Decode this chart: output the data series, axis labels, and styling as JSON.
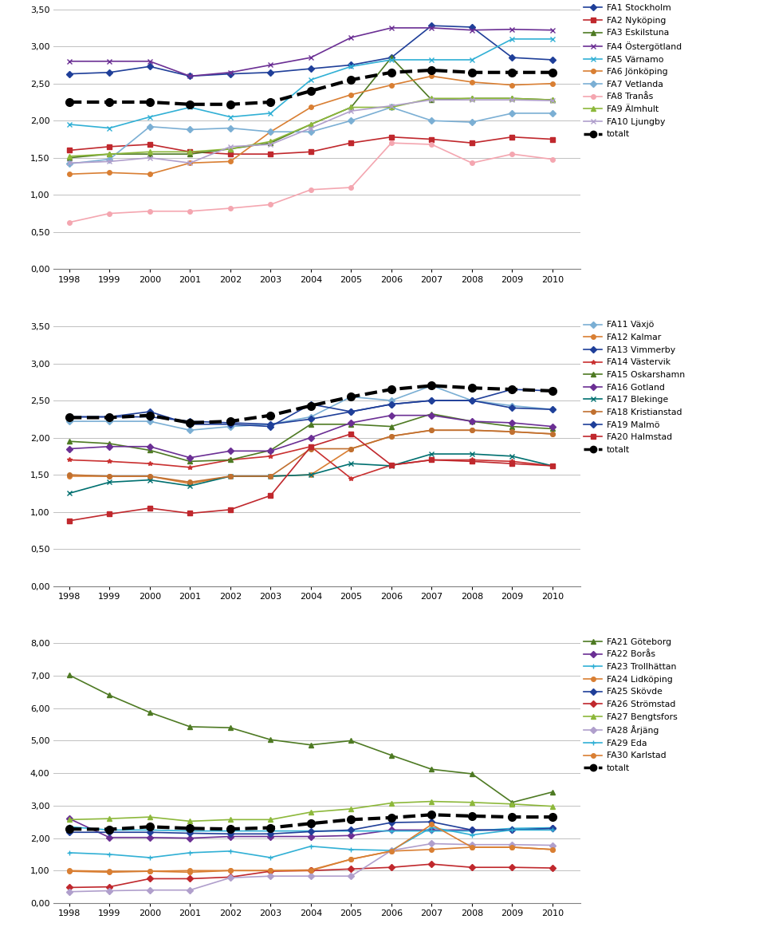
{
  "years": [
    1998,
    1999,
    2000,
    2001,
    2002,
    2003,
    2004,
    2005,
    2006,
    2007,
    2008,
    2009,
    2010
  ],
  "chart1": {
    "ylim": [
      0.0,
      3.5
    ],
    "yticks": [
      0.0,
      0.5,
      1.0,
      1.5,
      2.0,
      2.5,
      3.0,
      3.5
    ],
    "series_order": [
      "FA1 Stockholm",
      "FA2 Nyköping",
      "FA3 Eskilstuna",
      "FA4 Östergötland",
      "FA5 Värnamo",
      "FA6 Jönköping",
      "FA7 Vetlanda",
      "FA8 Tranås",
      "FA9 Älmhult",
      "FA10 Ljungby",
      "totalt"
    ],
    "series": {
      "FA1 Stockholm": [
        2.63,
        2.65,
        2.73,
        2.6,
        2.63,
        2.65,
        2.7,
        2.75,
        2.85,
        3.28,
        3.26,
        2.85,
        2.82
      ],
      "FA2 Nyköping": [
        1.6,
        1.65,
        1.68,
        1.58,
        1.55,
        1.55,
        1.58,
        1.7,
        1.78,
        1.75,
        1.7,
        1.78,
        1.75
      ],
      "FA3 Eskilstuna": [
        1.5,
        1.55,
        1.55,
        1.55,
        1.62,
        1.7,
        1.95,
        2.18,
        2.85,
        2.28,
        2.3,
        2.3,
        2.28
      ],
      "FA4 Östergötland": [
        2.8,
        2.8,
        2.8,
        2.6,
        2.65,
        2.75,
        2.85,
        3.12,
        3.25,
        3.25,
        3.22,
        3.23,
        3.22
      ],
      "FA5 Värnamo": [
        1.95,
        1.9,
        2.05,
        2.18,
        2.05,
        2.1,
        2.55,
        2.73,
        2.82,
        2.82,
        2.82,
        3.1,
        3.1
      ],
      "FA6 Jönköping": [
        1.28,
        1.3,
        1.28,
        1.43,
        1.45,
        1.85,
        2.18,
        2.35,
        2.48,
        2.6,
        2.52,
        2.48,
        2.5
      ],
      "FA7 Vetlanda": [
        1.42,
        1.48,
        1.92,
        1.88,
        1.9,
        1.85,
        1.85,
        2.0,
        2.18,
        2.0,
        1.98,
        2.1,
        2.1
      ],
      "FA8 Tranås": [
        0.63,
        0.75,
        0.78,
        0.78,
        0.82,
        0.87,
        1.07,
        1.1,
        1.7,
        1.68,
        1.43,
        1.55,
        1.48
      ],
      "FA9 Älmhult": [
        1.52,
        1.55,
        1.58,
        1.58,
        1.62,
        1.72,
        1.95,
        2.18,
        2.18,
        2.3,
        2.3,
        2.3,
        2.28
      ],
      "FA10 Ljungby": [
        1.43,
        1.45,
        1.5,
        1.43,
        1.65,
        1.68,
        1.9,
        2.13,
        2.2,
        2.28,
        2.28,
        2.28,
        2.27
      ],
      "totalt": [
        2.25,
        2.25,
        2.25,
        2.22,
        2.22,
        2.25,
        2.4,
        2.55,
        2.65,
        2.68,
        2.65,
        2.65,
        2.65
      ]
    },
    "colors": {
      "FA1 Stockholm": "#1f3f99",
      "FA2 Nyköping": "#c0282d",
      "FA3 Eskilstuna": "#4e7a23",
      "FA4 Östergötland": "#6b2f94",
      "FA5 Värnamo": "#31b0d5",
      "FA6 Jönköping": "#d97f33",
      "FA7 Vetlanda": "#7bafd4",
      "FA8 Tranås": "#f4a6b0",
      "FA9 Älmhult": "#8db83b",
      "FA10 Ljungby": "#b09fcc",
      "totalt": "#000000"
    },
    "markers": {
      "FA1 Stockholm": "D",
      "FA2 Nyköping": "s",
      "FA3 Eskilstuna": "^",
      "FA4 Östergötland": "x",
      "FA5 Värnamo": "x",
      "FA6 Jönköping": "o",
      "FA7 Vetlanda": "D",
      "FA8 Tranås": "o",
      "FA9 Älmhult": "^",
      "FA10 Ljungby": "x",
      "totalt": "o"
    }
  },
  "chart2": {
    "ylim": [
      0.0,
      3.5
    ],
    "yticks": [
      0.0,
      0.5,
      1.0,
      1.5,
      2.0,
      2.5,
      3.0,
      3.5
    ],
    "series_order": [
      "FA11 Växjö",
      "FA12 Kalmar",
      "FA13 Vimmerby",
      "FA14 Västervik",
      "FA15 Oskarshamn",
      "FA16 Gotland",
      "FA17 Blekinge",
      "FA18 Kristianstad",
      "FA19 Malmö",
      "FA20 Halmstad",
      "totalt"
    ],
    "series": {
      "FA11 Växjö": [
        2.22,
        2.22,
        2.22,
        2.1,
        2.15,
        2.18,
        2.28,
        2.55,
        2.5,
        2.7,
        2.5,
        2.43,
        2.38
      ],
      "FA12 Kalmar": [
        1.48,
        1.48,
        1.48,
        1.38,
        1.48,
        1.48,
        1.5,
        1.85,
        2.02,
        2.1,
        2.1,
        2.08,
        2.05
      ],
      "FA13 Vimmerby": [
        2.28,
        2.28,
        2.28,
        2.22,
        2.2,
        2.18,
        2.25,
        2.35,
        2.45,
        2.5,
        2.5,
        2.65,
        2.63
      ],
      "FA14 Västervik": [
        1.7,
        1.68,
        1.65,
        1.6,
        1.7,
        1.75,
        1.88,
        1.45,
        1.63,
        1.7,
        1.7,
        1.68,
        1.62
      ],
      "FA15 Oskarshamn": [
        1.95,
        1.92,
        1.83,
        1.68,
        1.7,
        1.83,
        2.18,
        2.18,
        2.15,
        2.32,
        2.22,
        2.15,
        2.12
      ],
      "FA16 Gotland": [
        1.85,
        1.88,
        1.88,
        1.73,
        1.82,
        1.82,
        2.0,
        2.2,
        2.3,
        2.3,
        2.22,
        2.2,
        2.15
      ],
      "FA17 Blekinge": [
        1.25,
        1.4,
        1.43,
        1.35,
        1.48,
        1.48,
        1.5,
        1.65,
        1.62,
        1.78,
        1.78,
        1.75,
        1.62
      ],
      "FA18 Kristianstad": [
        1.5,
        1.48,
        1.48,
        1.4,
        1.48,
        1.48,
        1.85,
        1.85,
        2.02,
        2.1,
        2.1,
        2.08,
        2.05
      ],
      "FA19 Malmö": [
        2.28,
        2.28,
        2.35,
        2.18,
        2.18,
        2.15,
        2.45,
        2.35,
        2.45,
        2.5,
        2.5,
        2.4,
        2.38
      ],
      "FA20 Halmstad": [
        0.88,
        0.97,
        1.05,
        0.98,
        1.03,
        1.22,
        1.88,
        2.05,
        1.63,
        1.7,
        1.68,
        1.65,
        1.62
      ],
      "totalt": [
        2.27,
        2.27,
        2.3,
        2.2,
        2.22,
        2.3,
        2.43,
        2.55,
        2.65,
        2.7,
        2.67,
        2.65,
        2.63
      ]
    },
    "colors": {
      "FA11 Växjö": "#7bafd4",
      "FA12 Kalmar": "#d97f33",
      "FA13 Vimmerby": "#1f3f99",
      "FA14 Västervik": "#c93030",
      "FA15 Oskarshamn": "#4e7a23",
      "FA16 Gotland": "#6b2f94",
      "FA17 Blekinge": "#007070",
      "FA18 Kristianstad": "#c07030",
      "FA19 Malmö": "#1f3f99",
      "FA20 Halmstad": "#c0282d",
      "totalt": "#000000"
    },
    "markers": {
      "FA11 Växjö": "D",
      "FA12 Kalmar": "o",
      "FA13 Vimmerby": "D",
      "FA14 Västervik": "*",
      "FA15 Oskarshamn": "^",
      "FA16 Gotland": "D",
      "FA17 Blekinge": "x",
      "FA18 Kristianstad": "o",
      "FA19 Malmö": "D",
      "FA20 Halmstad": "s",
      "totalt": "o"
    }
  },
  "chart3": {
    "ylim": [
      0.0,
      8.0
    ],
    "yticks": [
      0.0,
      1.0,
      2.0,
      3.0,
      4.0,
      5.0,
      6.0,
      7.0,
      8.0
    ],
    "series_order": [
      "FA21 Göteborg",
      "FA22 Borås",
      "FA23 Trollhättan",
      "FA24 Lidköping",
      "FA25 Skövde",
      "FA26 Strömstad",
      "FA27 Bengtsfors",
      "FA28 Årjäng",
      "FA29 Eda",
      "FA30 Karlstad",
      "totalt"
    ],
    "series": {
      "FA21 Göteborg": [
        7.02,
        6.4,
        5.87,
        5.43,
        5.4,
        5.03,
        4.87,
        5.0,
        4.55,
        4.12,
        3.98,
        3.1,
        3.42
      ],
      "FA22 Borås": [
        2.6,
        2.02,
        2.02,
        2.0,
        2.05,
        2.05,
        2.05,
        2.08,
        2.25,
        2.25,
        2.25,
        2.25,
        2.3
      ],
      "FA23 Trollhättan": [
        2.35,
        2.25,
        2.25,
        2.22,
        2.22,
        2.22,
        2.22,
        2.22,
        2.22,
        2.22,
        2.22,
        2.3,
        2.32
      ],
      "FA24 Lidköping": [
        1.0,
        0.98,
        0.98,
        1.0,
        1.0,
        1.0,
        1.02,
        1.35,
        1.6,
        1.65,
        1.72,
        1.72,
        1.65
      ],
      "FA25 Skövde": [
        2.18,
        2.18,
        2.18,
        2.15,
        2.13,
        2.13,
        2.2,
        2.25,
        2.48,
        2.5,
        2.25,
        2.25,
        2.3
      ],
      "FA26 Strömstad": [
        0.48,
        0.5,
        0.75,
        0.75,
        0.8,
        0.98,
        1.0,
        1.05,
        1.1,
        1.2,
        1.1,
        1.1,
        1.08
      ],
      "FA27 Bengtsfors": [
        2.57,
        2.6,
        2.65,
        2.52,
        2.57,
        2.57,
        2.8,
        2.9,
        3.08,
        3.13,
        3.1,
        3.05,
        2.98
      ],
      "FA28 Årjäng": [
        0.35,
        0.38,
        0.4,
        0.4,
        0.78,
        0.83,
        0.83,
        0.83,
        1.62,
        1.83,
        1.8,
        1.8,
        1.78
      ],
      "FA29 Eda": [
        1.55,
        1.5,
        1.4,
        1.55,
        1.6,
        1.4,
        1.75,
        1.65,
        1.62,
        2.33,
        2.1,
        2.25,
        2.25
      ],
      "FA30 Karlstad": [
        0.98,
        0.95,
        0.98,
        0.95,
        1.0,
        1.0,
        1.0,
        1.35,
        1.6,
        2.42,
        1.72,
        1.72,
        1.65
      ],
      "totalt": [
        2.28,
        2.27,
        2.35,
        2.3,
        2.28,
        2.32,
        2.45,
        2.57,
        2.63,
        2.72,
        2.68,
        2.65,
        2.65
      ]
    },
    "colors": {
      "FA21 Göteborg": "#4e7a23",
      "FA22 Borås": "#6b2f94",
      "FA23 Trollhättan": "#31b0d5",
      "FA24 Lidköping": "#d97f33",
      "FA25 Skövde": "#1f3f99",
      "FA26 Strömstad": "#c0282d",
      "FA27 Bengtsfors": "#8db83b",
      "FA28 Årjäng": "#b09fcc",
      "FA29 Eda": "#31b0d5",
      "FA30 Karlstad": "#d97f33",
      "totalt": "#000000"
    },
    "markers": {
      "FA21 Göteborg": "^",
      "FA22 Borås": "D",
      "FA23 Trollhättan": "+",
      "FA24 Lidköping": "o",
      "FA25 Skövde": "D",
      "FA26 Strömstad": "D",
      "FA27 Bengtsfors": "^",
      "FA28 Årjäng": "D",
      "FA29 Eda": "+",
      "FA30 Karlstad": "o",
      "totalt": "o"
    }
  }
}
